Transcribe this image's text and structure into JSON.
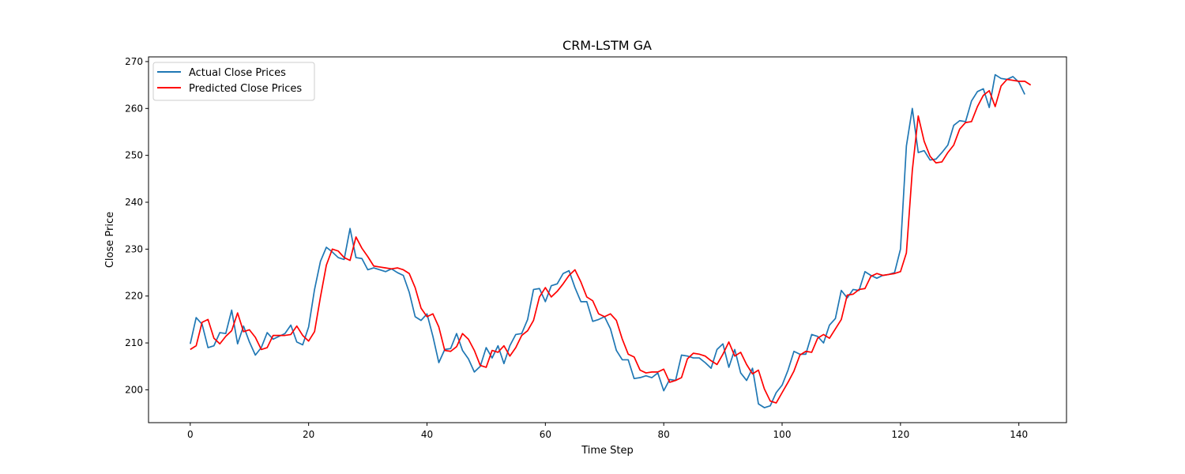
{
  "chart_data": {
    "type": "line",
    "title": "CRM-LSTM GA",
    "xlabel": "Time Step",
    "ylabel": "Close Price",
    "xlim": [
      -7.05,
      148.05
    ],
    "ylim": [
      193,
      271
    ],
    "xticks": [
      0,
      20,
      40,
      60,
      80,
      100,
      120,
      140
    ],
    "yticks": [
      200,
      210,
      220,
      230,
      240,
      250,
      260,
      270
    ],
    "grid": false,
    "legend_position": "upper-left",
    "series": [
      {
        "name": "Actual Close Prices",
        "color": "#1f77b4",
        "values": [
          209.8,
          215.4,
          214.0,
          209.0,
          209.4,
          212.2,
          212.0,
          217.0,
          209.8,
          213.6,
          210.2,
          207.4,
          209.0,
          212.2,
          210.8,
          211.4,
          212.0,
          213.8,
          210.2,
          209.6,
          213.4,
          221.4,
          227.4,
          230.4,
          229.4,
          228.2,
          227.8,
          234.4,
          228.2,
          228.0,
          225.6,
          226.0,
          225.6,
          225.2,
          225.8,
          225.0,
          224.4,
          220.8,
          215.6,
          214.8,
          216.2,
          211.4,
          205.8,
          208.6,
          208.8,
          212.0,
          208.4,
          206.6,
          203.8,
          205.0,
          209.0,
          206.8,
          209.4,
          205.6,
          209.4,
          211.8,
          212.0,
          215.0,
          221.4,
          221.6,
          218.8,
          222.2,
          222.6,
          224.8,
          225.4,
          221.8,
          218.8,
          218.8,
          214.6,
          215.0,
          215.6,
          213.0,
          208.4,
          206.4,
          206.4,
          202.4,
          202.6,
          203.0,
          202.6,
          203.6,
          199.8,
          202.2,
          202.0,
          207.4,
          207.2,
          206.8,
          206.8,
          205.8,
          204.6,
          208.6,
          209.8,
          204.8,
          208.6,
          203.6,
          202.0,
          204.6,
          197.0,
          196.2,
          196.6,
          199.4,
          201.0,
          204.2,
          208.2,
          207.6,
          207.6,
          211.8,
          211.4,
          210.0,
          213.8,
          215.2,
          221.2,
          219.6,
          221.4,
          221.2,
          225.2,
          224.4,
          223.8,
          224.4,
          224.6,
          225.0,
          230.0,
          252.0,
          260.0,
          250.6,
          251.0,
          249.0,
          249.2,
          250.6,
          252.2,
          256.4,
          257.4,
          257.2,
          261.6,
          263.6,
          264.2,
          260.2,
          267.2,
          266.4,
          266.2,
          266.8,
          265.6,
          263.0
        ]
      },
      {
        "name": "Predicted Close Prices",
        "color": "#ff0000",
        "values": [
          208.6,
          209.4,
          214.4,
          215.0,
          211.0,
          209.8,
          211.4,
          212.6,
          216.4,
          212.4,
          212.8,
          211.2,
          208.6,
          209.0,
          211.6,
          211.6,
          211.6,
          211.8,
          213.6,
          211.6,
          210.4,
          212.4,
          219.8,
          226.6,
          230.0,
          229.6,
          228.2,
          227.6,
          232.6,
          230.2,
          228.4,
          226.4,
          226.2,
          226.0,
          225.8,
          226.0,
          225.6,
          224.8,
          221.8,
          217.4,
          215.6,
          216.2,
          213.4,
          208.4,
          208.2,
          209.2,
          212.0,
          210.8,
          208.4,
          205.2,
          204.8,
          208.4,
          208.0,
          209.4,
          207.2,
          209.0,
          211.6,
          212.6,
          214.8,
          219.8,
          221.8,
          219.8,
          221.0,
          222.6,
          224.4,
          225.6,
          223.0,
          219.8,
          219.0,
          216.2,
          215.6,
          216.2,
          214.8,
          210.8,
          207.6,
          207.0,
          204.2,
          203.6,
          203.8,
          203.8,
          204.4,
          201.6,
          202.0,
          202.6,
          206.6,
          207.8,
          207.6,
          207.2,
          206.2,
          205.4,
          207.6,
          210.2,
          207.2,
          208.0,
          205.4,
          203.4,
          204.2,
          200.2,
          197.6,
          197.2,
          199.4,
          201.6,
          204.0,
          207.4,
          208.2,
          208.0,
          211.0,
          211.8,
          211.0,
          213.0,
          215.0,
          220.2,
          220.4,
          221.4,
          221.6,
          224.2,
          224.8,
          224.4,
          224.6,
          224.8,
          225.2,
          229.2,
          246.8,
          258.4,
          253.0,
          249.8,
          248.4,
          248.6,
          250.6,
          252.2,
          255.6,
          257.0,
          257.2,
          260.4,
          262.8,
          263.8,
          260.4,
          264.8,
          266.2,
          266.0,
          265.8,
          265.8,
          265.0
        ]
      }
    ]
  }
}
